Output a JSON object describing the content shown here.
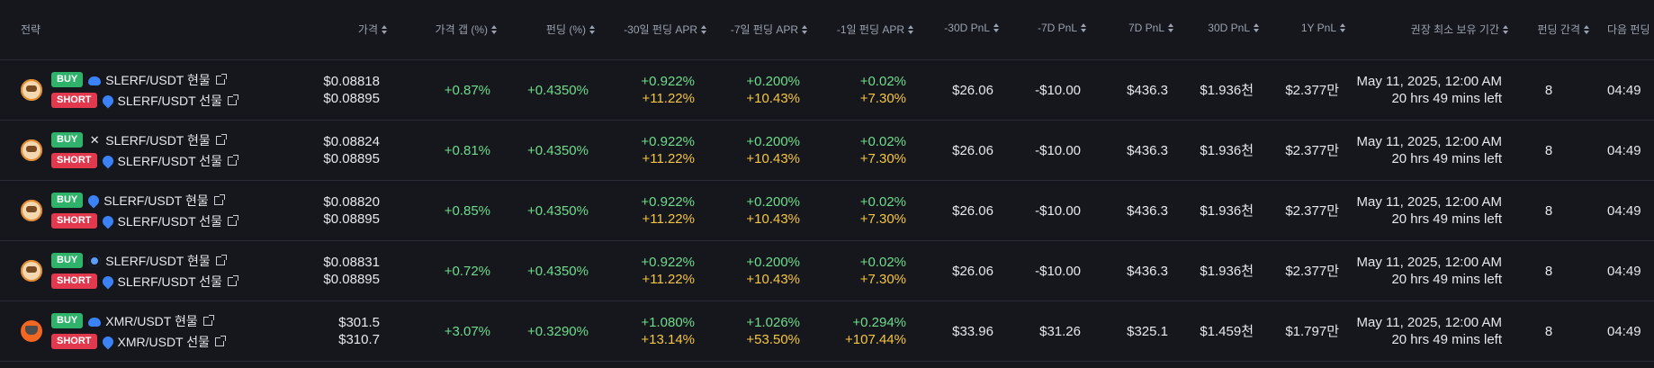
{
  "headers": {
    "strategy": "전략",
    "price": "가격",
    "price_gap": "가격 갭 (%)",
    "funding": "펀딩 (%)",
    "apr30": "-30일 펀딩 APR",
    "apr7": "-7일 펀딩 APR",
    "apr1": "-1일 펀딩 APR",
    "pnl_m30": "-30D PnL",
    "pnl_m7": "-7D PnL",
    "pnl_7": "7D PnL",
    "pnl_30": "30D PnL",
    "pnl_1y": "1Y PnL",
    "hold": "권장 최소 보유 기간",
    "interval": "펀딩 간격",
    "next": "다음 펀딩"
  },
  "badges": {
    "buy": "BUY",
    "short": "SHORT"
  },
  "rows": [
    {
      "coin": "slerf",
      "buy_exchange_icon": "cloud-exchange-icon",
      "buy_pair": "SLERF/USDT 현물",
      "short_exchange_icon": "drop-exchange-icon",
      "short_pair": "SLERF/USDT 선물",
      "price_a": "$0.08818",
      "price_b": "$0.08895",
      "gap": "+0.87%",
      "funding": "+0.4350%",
      "apr30_a": "+0.922%",
      "apr30_b": "+11.22%",
      "apr7_a": "+0.200%",
      "apr7_b": "+10.43%",
      "apr1_a": "+0.02%",
      "apr1_b": "+7.30%",
      "pnl_m30": "$26.06",
      "pnl_m7": "-$10.00",
      "pnl_7": "$436.3",
      "pnl_30": "$1.936천",
      "pnl_1y": "$2.377만",
      "hold_date": "May 11, 2025, 12:00 AM",
      "hold_left": "20 hrs 49 mins left",
      "interval": "8",
      "next": "04:49"
    },
    {
      "coin": "slerf",
      "buy_exchange_icon": "x-exchange-icon",
      "buy_pair": "SLERF/USDT 현물",
      "short_exchange_icon": "drop-exchange-icon",
      "short_pair": "SLERF/USDT 선물",
      "price_a": "$0.08824",
      "price_b": "$0.08895",
      "gap": "+0.81%",
      "funding": "+0.4350%",
      "apr30_a": "+0.922%",
      "apr30_b": "+11.22%",
      "apr7_a": "+0.200%",
      "apr7_b": "+10.43%",
      "apr1_a": "+0.02%",
      "apr1_b": "+7.30%",
      "pnl_m30": "$26.06",
      "pnl_m7": "-$10.00",
      "pnl_7": "$436.3",
      "pnl_30": "$1.936천",
      "pnl_1y": "$2.377만",
      "hold_date": "May 11, 2025, 12:00 AM",
      "hold_left": "20 hrs 49 mins left",
      "interval": "8",
      "next": "04:49"
    },
    {
      "coin": "slerf",
      "buy_exchange_icon": "drop-exchange-icon",
      "buy_pair": "SLERF/USDT 현물",
      "short_exchange_icon": "drop-exchange-icon",
      "short_pair": "SLERF/USDT 선물",
      "price_a": "$0.08820",
      "price_b": "$0.08895",
      "gap": "+0.85%",
      "funding": "+0.4350%",
      "apr30_a": "+0.922%",
      "apr30_b": "+11.22%",
      "apr7_a": "+0.200%",
      "apr7_b": "+10.43%",
      "apr1_a": "+0.02%",
      "apr1_b": "+7.30%",
      "pnl_m30": "$26.06",
      "pnl_m7": "-$10.00",
      "pnl_7": "$436.3",
      "pnl_30": "$1.936천",
      "pnl_1y": "$2.377만",
      "hold_date": "May 11, 2025, 12:00 AM",
      "hold_left": "20 hrs 49 mins left",
      "interval": "8",
      "next": "04:49"
    },
    {
      "coin": "slerf",
      "buy_exchange_icon": "swirl-exchange-icon",
      "buy_pair": "SLERF/USDT 현물",
      "short_exchange_icon": "drop-exchange-icon",
      "short_pair": "SLERF/USDT 선물",
      "price_a": "$0.08831",
      "price_b": "$0.08895",
      "gap": "+0.72%",
      "funding": "+0.4350%",
      "apr30_a": "+0.922%",
      "apr30_b": "+11.22%",
      "apr7_a": "+0.200%",
      "apr7_b": "+10.43%",
      "apr1_a": "+0.02%",
      "apr1_b": "+7.30%",
      "pnl_m30": "$26.06",
      "pnl_m7": "-$10.00",
      "pnl_7": "$436.3",
      "pnl_30": "$1.936천",
      "pnl_1y": "$2.377만",
      "hold_date": "May 11, 2025, 12:00 AM",
      "hold_left": "20 hrs 49 mins left",
      "interval": "8",
      "next": "04:49"
    },
    {
      "coin": "xmr",
      "buy_exchange_icon": "cloud-exchange-icon",
      "buy_pair": "XMR/USDT 현물",
      "short_exchange_icon": "drop-exchange-icon",
      "short_pair": "XMR/USDT 선물",
      "price_a": "$301.5",
      "price_b": "$310.7",
      "gap": "+3.07%",
      "funding": "+0.3290%",
      "apr30_a": "+1.080%",
      "apr30_b": "+13.14%",
      "apr7_a": "+1.026%",
      "apr7_b": "+53.50%",
      "apr1_a": "+0.294%",
      "apr1_b": "+107.44%",
      "pnl_m30": "$33.96",
      "pnl_m7": "$31.26",
      "pnl_7": "$325.1",
      "pnl_30": "$1.459천",
      "pnl_1y": "$1.797만",
      "hold_date": "May 11, 2025, 12:00 AM",
      "hold_left": "20 hrs 49 mins left",
      "interval": "8",
      "next": "04:49"
    }
  ]
}
